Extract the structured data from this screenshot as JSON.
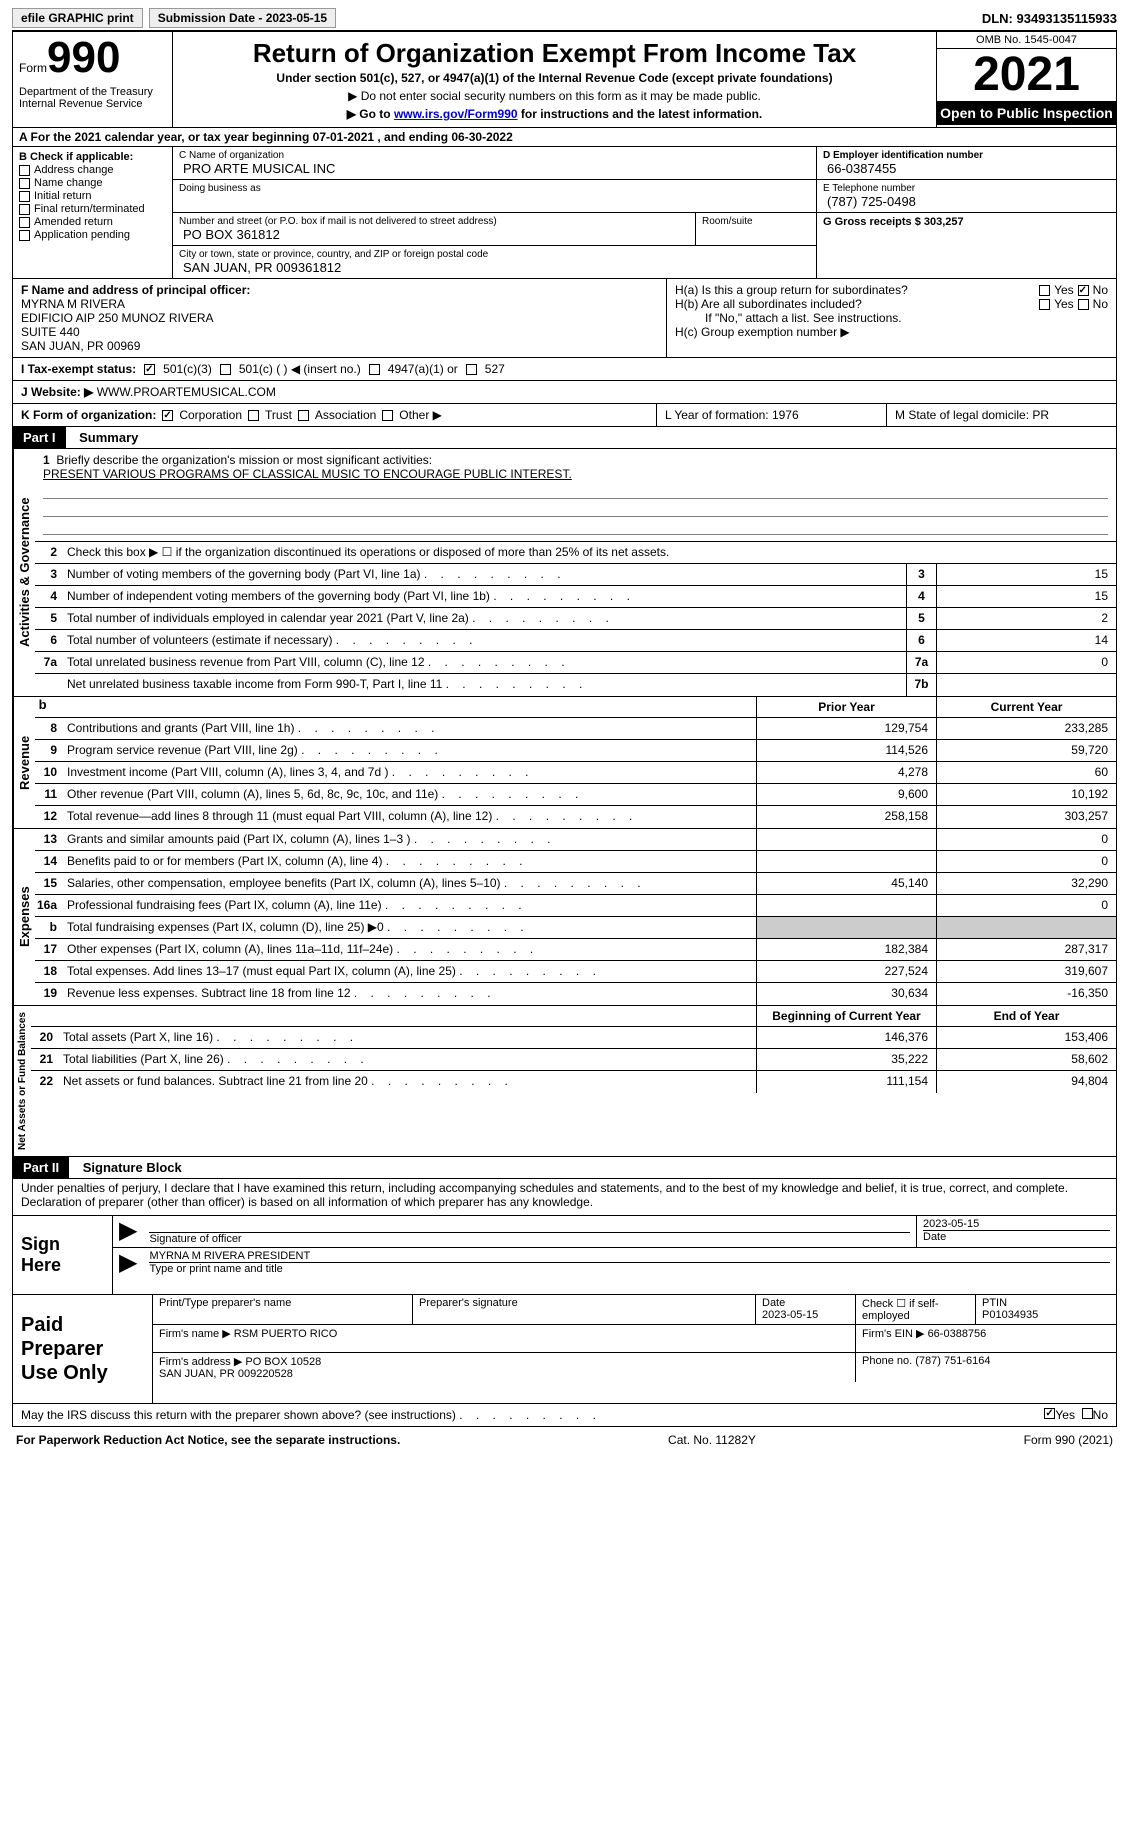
{
  "topbar": {
    "efile_label": "efile GRAPHIC print",
    "submission_label": "Submission Date - 2023-05-15",
    "dln_label": "DLN: 93493135115933"
  },
  "header": {
    "form_label": "Form",
    "form_number": "990",
    "dept": "Department of the Treasury\nInternal Revenue Service",
    "title": "Return of Organization Exempt From Income Tax",
    "subtitle": "Under section 501(c), 527, or 4947(a)(1) of the Internal Revenue Code (except private foundations)",
    "note1": "▶ Do not enter social security numbers on this form as it may be made public.",
    "note2_prefix": "▶ Go to ",
    "note2_link": "www.irs.gov/Form990",
    "note2_suffix": " for instructions and the latest information.",
    "omb": "OMB No. 1545-0047",
    "year": "2021",
    "inspect": "Open to Public Inspection"
  },
  "line_a": "A For the 2021 calendar year, or tax year beginning 07-01-2021    , and ending 06-30-2022",
  "section_b": {
    "label": "B Check if applicable:",
    "opts": [
      "Address change",
      "Name change",
      "Initial return",
      "Final return/terminated",
      "Amended return",
      "Application pending"
    ]
  },
  "section_c": {
    "name_label": "C Name of organization",
    "name": "PRO ARTE MUSICAL INC",
    "dba_label": "Doing business as",
    "street_label": "Number and street (or P.O. box if mail is not delivered to street address)",
    "street": "PO BOX 361812",
    "room_label": "Room/suite",
    "city_label": "City or town, state or province, country, and ZIP or foreign postal code",
    "city": "SAN JUAN, PR  009361812"
  },
  "section_d": {
    "ein_label": "D Employer identification number",
    "ein": "66-0387455",
    "phone_label": "E Telephone number",
    "phone": "(787) 725-0498",
    "gross_label": "G Gross receipts $ 303,257"
  },
  "section_f": {
    "label": "F Name and address of principal officer:",
    "name": "MYRNA M RIVERA",
    "addr1": "EDIFICIO AIP 250 MUNOZ RIVERA",
    "addr2": "SUITE 440",
    "addr3": "SAN JUAN, PR  00969"
  },
  "section_h": {
    "ha": "H(a)  Is this a group return for subordinates?",
    "hb": "H(b)  Are all subordinates included?",
    "hb_note": "If \"No,\" attach a list. See instructions.",
    "hc": "H(c)  Group exemption number ▶",
    "yes": "Yes",
    "no": "No"
  },
  "section_i": {
    "label": "I   Tax-exempt status:",
    "opts": [
      "501(c)(3)",
      "501(c) (  ) ◀ (insert no.)",
      "4947(a)(1) or",
      "527"
    ]
  },
  "section_j": {
    "label": "J   Website: ▶",
    "val": "WWW.PROARTEMUSICAL.COM"
  },
  "section_k": {
    "label": "K Form of organization:",
    "opts": [
      "Corporation",
      "Trust",
      "Association",
      "Other ▶"
    ],
    "l_label": "L Year of formation: 1976",
    "m_label": "M State of legal domicile: PR"
  },
  "part1": {
    "label": "Part I",
    "title": "Summary",
    "l1_label": "Briefly describe the organization's mission or most significant activities:",
    "l1_text": "PRESENT VARIOUS PROGRAMS OF CLASSICAL MUSIC TO ENCOURAGE PUBLIC INTEREST.",
    "l2": "Check this box ▶ ☐  if the organization discontinued its operations or disposed of more than 25% of its net assets.",
    "governance_label": "Activities & Governance",
    "revenue_label": "Revenue",
    "expenses_label": "Expenses",
    "netassets_label": "Net Assets or Fund Balances",
    "prior_year": "Prior Year",
    "current_year": "Current Year",
    "begin_year": "Beginning of Current Year",
    "end_year": "End of Year",
    "lines_gov": [
      {
        "n": "3",
        "t": "Number of voting members of the governing body (Part VI, line 1a)",
        "box": "3",
        "v": "15"
      },
      {
        "n": "4",
        "t": "Number of independent voting members of the governing body (Part VI, line 1b)",
        "box": "4",
        "v": "15"
      },
      {
        "n": "5",
        "t": "Total number of individuals employed in calendar year 2021 (Part V, line 2a)",
        "box": "5",
        "v": "2"
      },
      {
        "n": "6",
        "t": "Total number of volunteers (estimate if necessary)",
        "box": "6",
        "v": "14"
      },
      {
        "n": "7a",
        "t": "Total unrelated business revenue from Part VIII, column (C), line 12",
        "box": "7a",
        "v": "0"
      },
      {
        "n": "",
        "t": "Net unrelated business taxable income from Form 990-T, Part I, line 11",
        "box": "7b",
        "v": ""
      }
    ],
    "lines_rev": [
      {
        "n": "8",
        "t": "Contributions and grants (Part VIII, line 1h)",
        "p": "129,754",
        "c": "233,285"
      },
      {
        "n": "9",
        "t": "Program service revenue (Part VIII, line 2g)",
        "p": "114,526",
        "c": "59,720"
      },
      {
        "n": "10",
        "t": "Investment income (Part VIII, column (A), lines 3, 4, and 7d )",
        "p": "4,278",
        "c": "60"
      },
      {
        "n": "11",
        "t": "Other revenue (Part VIII, column (A), lines 5, 6d, 8c, 9c, 10c, and 11e)",
        "p": "9,600",
        "c": "10,192"
      },
      {
        "n": "12",
        "t": "Total revenue—add lines 8 through 11 (must equal Part VIII, column (A), line 12)",
        "p": "258,158",
        "c": "303,257"
      }
    ],
    "lines_exp": [
      {
        "n": "13",
        "t": "Grants and similar amounts paid (Part IX, column (A), lines 1–3 )",
        "p": "",
        "c": "0"
      },
      {
        "n": "14",
        "t": "Benefits paid to or for members (Part IX, column (A), line 4)",
        "p": "",
        "c": "0"
      },
      {
        "n": "15",
        "t": "Salaries, other compensation, employee benefits (Part IX, column (A), lines 5–10)",
        "p": "45,140",
        "c": "32,290"
      },
      {
        "n": "16a",
        "t": "Professional fundraising fees (Part IX, column (A), line 11e)",
        "p": "",
        "c": "0"
      },
      {
        "n": "b",
        "t": "Total fundraising expenses (Part IX, column (D), line 25) ▶0",
        "p": "GRAY",
        "c": "GRAY"
      },
      {
        "n": "17",
        "t": "Other expenses (Part IX, column (A), lines 11a–11d, 11f–24e)",
        "p": "182,384",
        "c": "287,317"
      },
      {
        "n": "18",
        "t": "Total expenses. Add lines 13–17 (must equal Part IX, column (A), line 25)",
        "p": "227,524",
        "c": "319,607"
      },
      {
        "n": "19",
        "t": "Revenue less expenses. Subtract line 18 from line 12",
        "p": "30,634",
        "c": "-16,350"
      }
    ],
    "lines_net": [
      {
        "n": "20",
        "t": "Total assets (Part X, line 16)",
        "p": "146,376",
        "c": "153,406"
      },
      {
        "n": "21",
        "t": "Total liabilities (Part X, line 26)",
        "p": "35,222",
        "c": "58,602"
      },
      {
        "n": "22",
        "t": "Net assets or fund balances. Subtract line 21 from line 20",
        "p": "111,154",
        "c": "94,804"
      }
    ]
  },
  "part2": {
    "label": "Part II",
    "title": "Signature Block",
    "decl": "Under penalties of perjury, I declare that I have examined this return, including accompanying schedules and statements, and to the best of my knowledge and belief, it is true, correct, and complete. Declaration of preparer (other than officer) is based on all information of which preparer has any knowledge.",
    "sign_here": "Sign Here",
    "sig_officer": "Signature of officer",
    "sig_date": "2023-05-15",
    "date_lbl": "Date",
    "officer_name": "MYRNA M RIVERA  PRESIDENT",
    "type_name": "Type or print name and title",
    "paid_prep": "Paid Preparer Use Only",
    "print_prep": "Print/Type preparer's name",
    "prep_sig": "Preparer's signature",
    "prep_date": "Date\n2023-05-15",
    "check_self": "Check ☐ if self-employed",
    "ptin_lbl": "PTIN",
    "ptin": "P01034935",
    "firm_name_lbl": "Firm's name    ▶",
    "firm_name": "RSM PUERTO RICO",
    "firm_ein_lbl": "Firm's EIN ▶",
    "firm_ein": "66-0388756",
    "firm_addr_lbl": "Firm's address ▶",
    "firm_addr": "PO BOX 10528\nSAN JUAN, PR  009220528",
    "firm_phone_lbl": "Phone no.",
    "firm_phone": "(787) 751-6164",
    "discuss": "May the IRS discuss this return with the preparer shown above? (see instructions)",
    "yes": "Yes",
    "no": "No"
  },
  "footer": {
    "left": "For Paperwork Reduction Act Notice, see the separate instructions.",
    "mid": "Cat. No. 11282Y",
    "right": "Form 990 (2021)"
  }
}
